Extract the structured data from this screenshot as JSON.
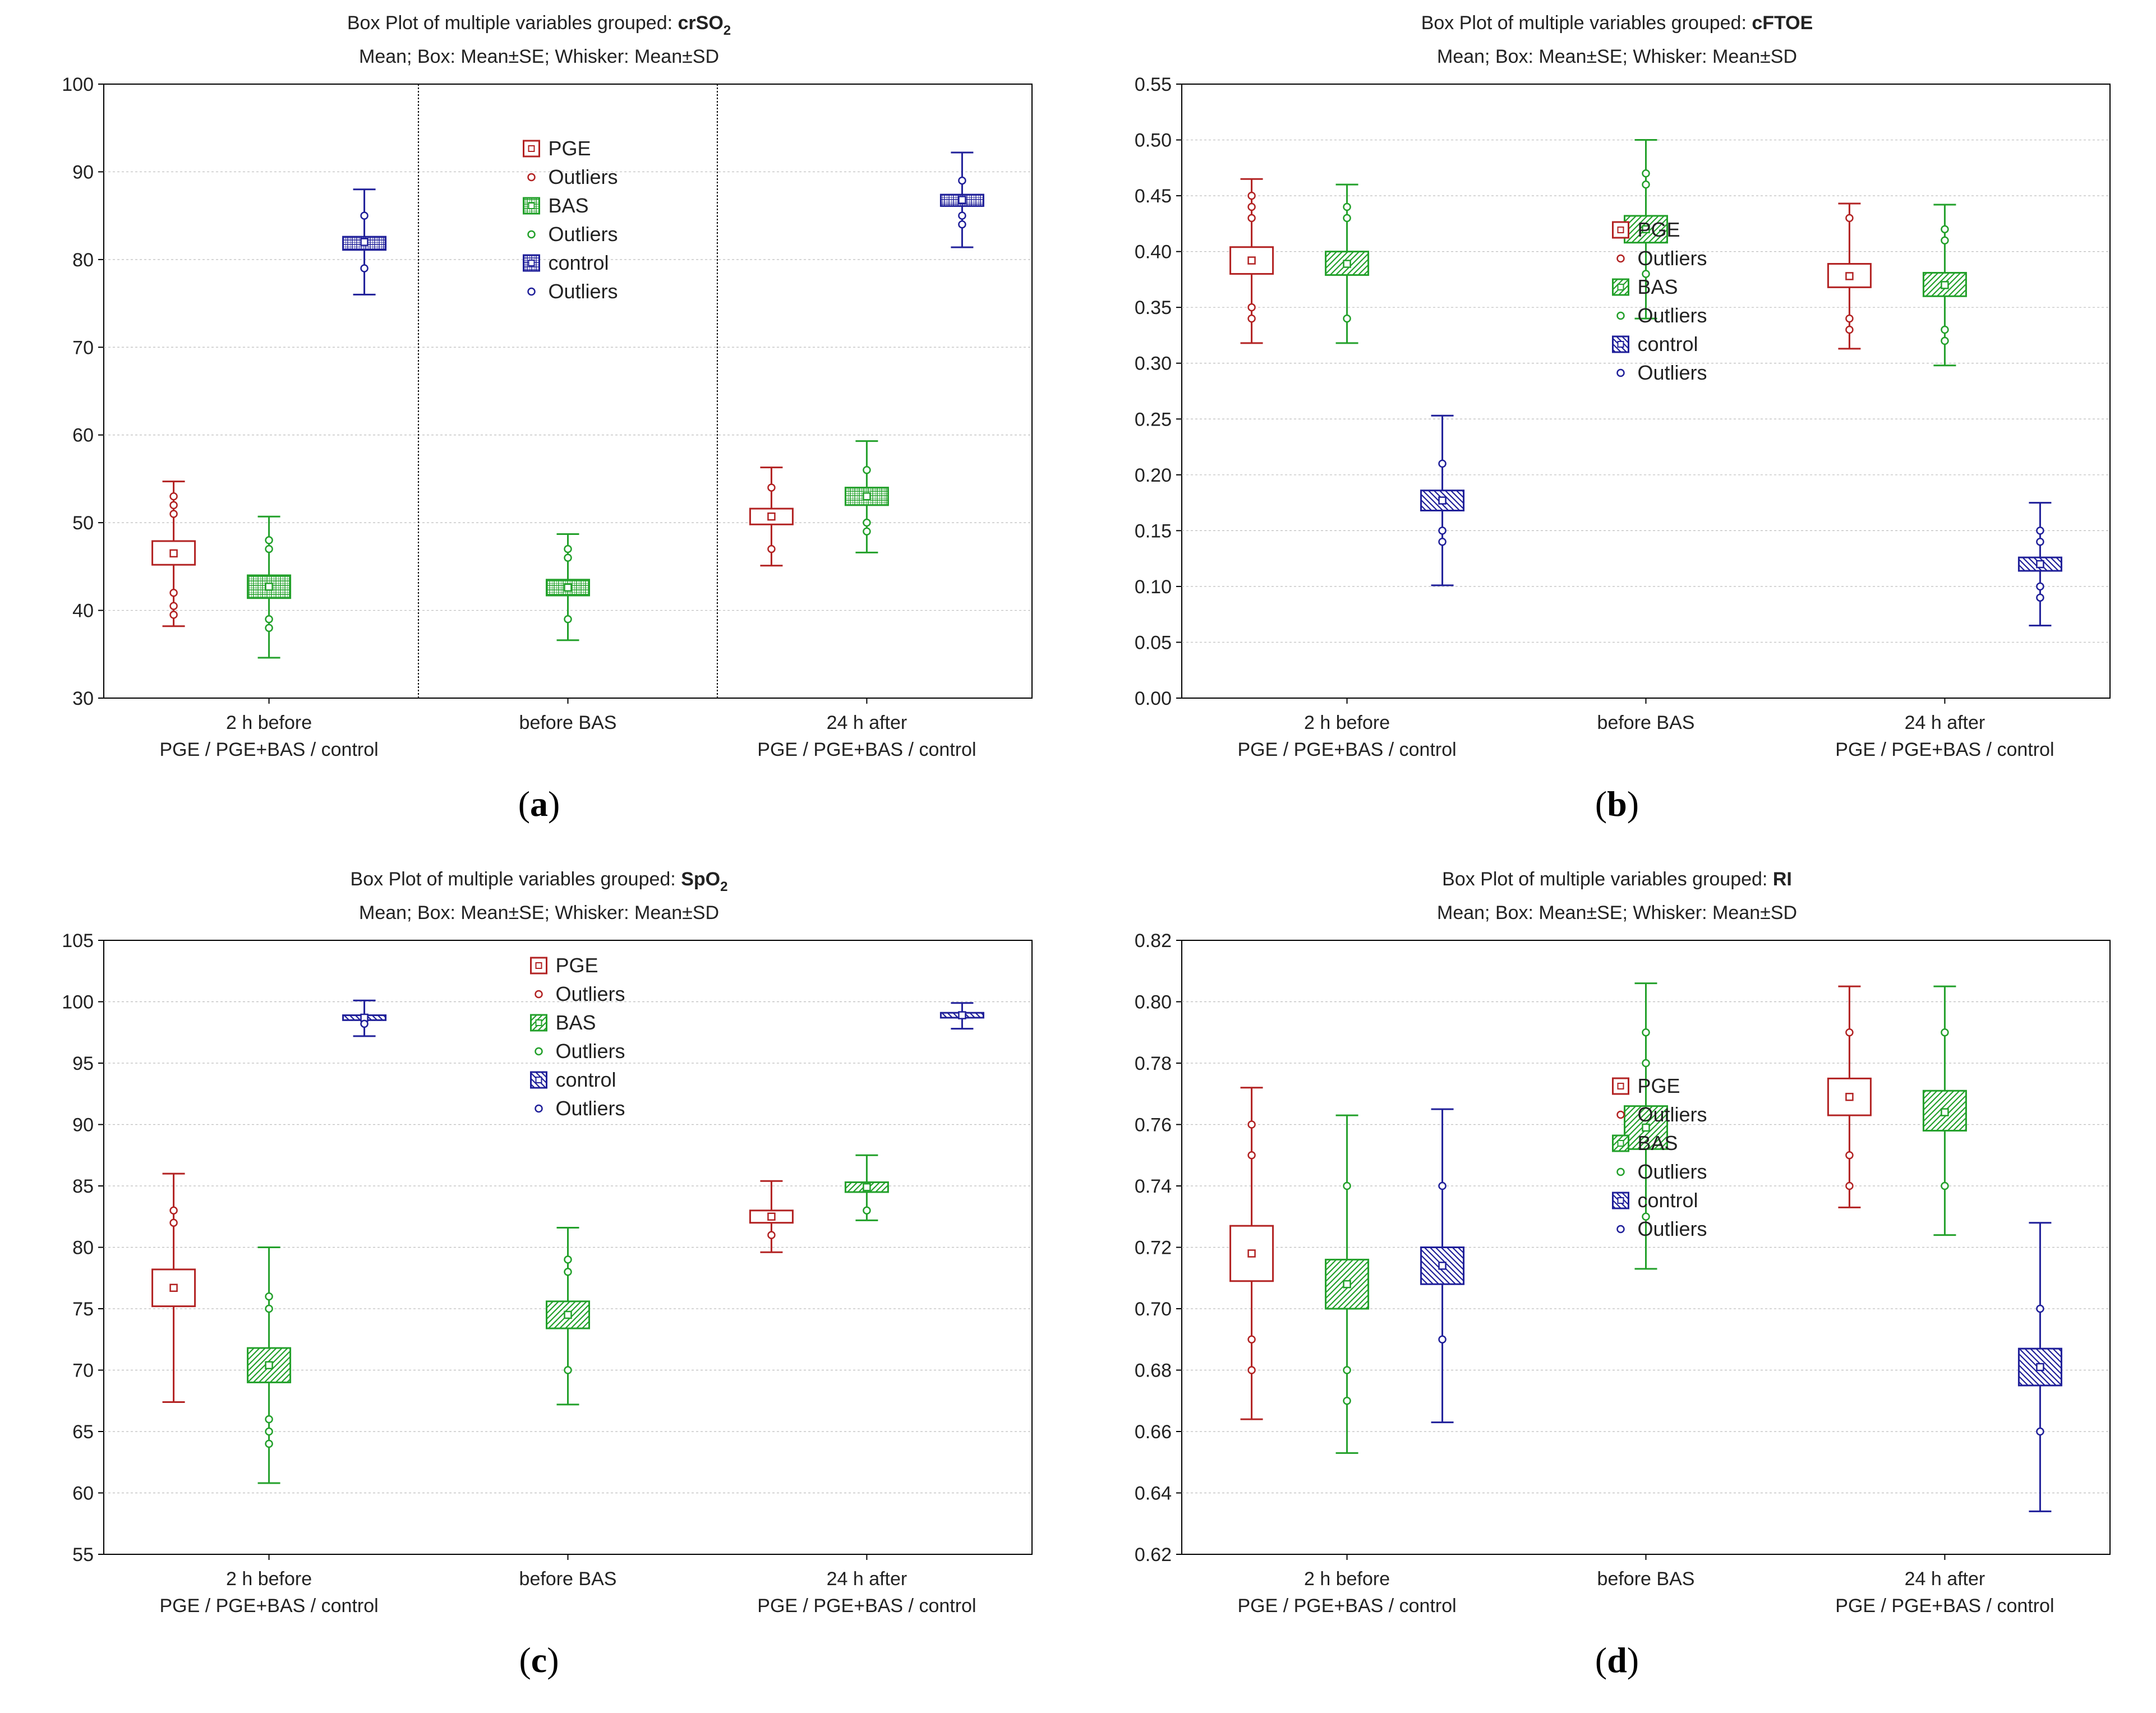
{
  "chart_data": [
    {
      "type": "box",
      "panel_label": "a",
      "title_prefix": "Box Plot of multiple variables grouped: ",
      "title_var": "crSO",
      "title_var_sub": "2",
      "subtitle": "Mean; Box: Mean±SE; Whisker: Mean±SD",
      "ylim": [
        30,
        100
      ],
      "yticks": [
        "30",
        "40",
        "50",
        "60",
        "70",
        "80",
        "90",
        "100"
      ],
      "grid": true,
      "dividers": true,
      "categories": [
        {
          "line1": "2 h before",
          "line2": "PGE / PGE+BAS / control"
        },
        {
          "line1": "before BAS",
          "line2": ""
        },
        {
          "line1": "24 h after",
          "line2": "PGE / PGE+BAS / control"
        }
      ],
      "legend_position": "center",
      "legend": [
        {
          "label": "PGE",
          "kind": "box",
          "series": 0
        },
        {
          "label": "Outliers",
          "kind": "dot",
          "series": 0
        },
        {
          "label": "BAS",
          "kind": "box",
          "series": 1
        },
        {
          "label": "Outliers",
          "kind": "dot",
          "series": 1
        },
        {
          "label": "control",
          "kind": "box",
          "series": 2
        },
        {
          "label": "Outliers",
          "kind": "dot",
          "series": 2
        }
      ],
      "series": [
        {
          "name": "PGE",
          "color": "#b22222",
          "pattern": "none",
          "boxes": [
            {
              "cat": 0,
              "mean": 46.5,
              "se_low": 45.2,
              "se_high": 47.9,
              "sd_low": 38.2,
              "sd_high": 54.7,
              "outliers": [
                53,
                52,
                51,
                42,
                40.5,
                39.5
              ]
            },
            {
              "cat": 2,
              "mean": 50.7,
              "se_low": 49.8,
              "se_high": 51.6,
              "sd_low": 45.1,
              "sd_high": 56.3,
              "outliers": [
                54,
                47
              ]
            }
          ]
        },
        {
          "name": "BAS",
          "color": "#22a02a",
          "pattern": "grid",
          "boxes": [
            {
              "cat": 0,
              "mean": 42.7,
              "se_low": 41.4,
              "se_high": 44.0,
              "sd_low": 34.6,
              "sd_high": 50.7,
              "outliers": [
                48,
                47,
                39,
                38
              ]
            },
            {
              "cat": 1,
              "mean": 42.6,
              "se_low": 41.7,
              "se_high": 43.5,
              "sd_low": 36.6,
              "sd_high": 48.7,
              "outliers": [
                47,
                46,
                39
              ]
            },
            {
              "cat": 2,
              "mean": 53.0,
              "se_low": 52.0,
              "se_high": 54.0,
              "sd_low": 46.6,
              "sd_high": 59.3,
              "outliers": [
                56,
                50,
                49
              ]
            }
          ]
        },
        {
          "name": "control",
          "color": "#1f1f99",
          "pattern": "grid",
          "boxes": [
            {
              "cat": 0,
              "mean": 82.0,
              "se_low": 81.1,
              "se_high": 82.6,
              "sd_low": 76.0,
              "sd_high": 88.0,
              "outliers": [
                85,
                79
              ]
            },
            {
              "cat": 2,
              "mean": 86.8,
              "se_low": 86.1,
              "se_high": 87.4,
              "sd_low": 81.4,
              "sd_high": 92.2,
              "outliers": [
                89,
                85,
                84
              ]
            }
          ]
        }
      ]
    },
    {
      "type": "box",
      "panel_label": "b",
      "title_prefix": "Box Plot of multiple variables grouped: ",
      "title_var": "cFTOE",
      "title_var_sub": "",
      "subtitle": "Mean; Box: Mean±SE; Whisker: Mean±SD",
      "ylim": [
        0.0,
        0.55
      ],
      "yticks": [
        "0.00",
        "0.05",
        "0.10",
        "0.15",
        "0.20",
        "0.25",
        "0.30",
        "0.35",
        "0.40",
        "0.45",
        "0.50",
        "0.55"
      ],
      "grid": true,
      "dividers": false,
      "categories": [
        {
          "line1": "2 h before",
          "line2": "PGE / PGE+BAS / control"
        },
        {
          "line1": "before BAS",
          "line2": ""
        },
        {
          "line1": "24 h after",
          "line2": "PGE / PGE+BAS / control"
        }
      ],
      "legend_position": "center-bottom",
      "legend": [
        {
          "label": "PGE",
          "kind": "box",
          "series": 0
        },
        {
          "label": "Outliers",
          "kind": "dot",
          "series": 0
        },
        {
          "label": "BAS",
          "kind": "box",
          "series": 1
        },
        {
          "label": "Outliers",
          "kind": "dot",
          "series": 1
        },
        {
          "label": "control",
          "kind": "box",
          "series": 2
        },
        {
          "label": "Outliers",
          "kind": "dot",
          "series": 2
        }
      ],
      "series": [
        {
          "name": "PGE",
          "color": "#b22222",
          "pattern": "none",
          "boxes": [
            {
              "cat": 0,
              "mean": 0.392,
              "se_low": 0.38,
              "se_high": 0.404,
              "sd_low": 0.318,
              "sd_high": 0.465,
              "outliers": [
                0.45,
                0.44,
                0.43,
                0.35,
                0.34
              ]
            },
            {
              "cat": 2,
              "mean": 0.378,
              "se_low": 0.368,
              "se_high": 0.389,
              "sd_low": 0.313,
              "sd_high": 0.443,
              "outliers": [
                0.43,
                0.34,
                0.33
              ]
            }
          ]
        },
        {
          "name": "BAS",
          "color": "#22a02a",
          "pattern": "hatch",
          "boxes": [
            {
              "cat": 0,
              "mean": 0.389,
              "se_low": 0.379,
              "se_high": 0.4,
              "sd_low": 0.318,
              "sd_high": 0.46,
              "outliers": [
                0.44,
                0.43,
                0.34
              ]
            },
            {
              "cat": 1,
              "mean": 0.42,
              "se_low": 0.408,
              "se_high": 0.432,
              "sd_low": 0.34,
              "sd_high": 0.5,
              "outliers": [
                0.47,
                0.46,
                0.38
              ]
            },
            {
              "cat": 2,
              "mean": 0.37,
              "se_low": 0.36,
              "se_high": 0.381,
              "sd_low": 0.298,
              "sd_high": 0.442,
              "outliers": [
                0.42,
                0.41,
                0.33,
                0.32
              ]
            }
          ]
        },
        {
          "name": "control",
          "color": "#1f1f99",
          "pattern": "hatch-rev",
          "boxes": [
            {
              "cat": 0,
              "mean": 0.177,
              "se_low": 0.168,
              "se_high": 0.186,
              "sd_low": 0.101,
              "sd_high": 0.253,
              "outliers": [
                0.21,
                0.15,
                0.14
              ]
            },
            {
              "cat": 2,
              "mean": 0.12,
              "se_low": 0.114,
              "se_high": 0.126,
              "sd_low": 0.065,
              "sd_high": 0.175,
              "outliers": [
                0.15,
                0.14,
                0.1,
                0.09
              ]
            }
          ]
        }
      ]
    },
    {
      "type": "box",
      "panel_label": "c",
      "title_prefix": "Box Plot of multiple variables grouped: ",
      "title_var": "SpO",
      "title_var_sub": "2",
      "subtitle": "Mean; Box: Mean±SE; Whisker: Mean±SD",
      "ylim": [
        55,
        105
      ],
      "yticks": [
        "55",
        "60",
        "65",
        "70",
        "75",
        "80",
        "85",
        "90",
        "95",
        "100",
        "105"
      ],
      "grid": true,
      "dividers": false,
      "categories": [
        {
          "line1": "2 h before",
          "line2": "PGE / PGE+BAS / control"
        },
        {
          "line1": "before BAS",
          "line2": ""
        },
        {
          "line1": "24 h after",
          "line2": "PGE / PGE+BAS / control"
        }
      ],
      "legend_position": "top-center",
      "legend": [
        {
          "label": "PGE",
          "kind": "box",
          "series": 0
        },
        {
          "label": "Outliers",
          "kind": "dot",
          "series": 0
        },
        {
          "label": "BAS",
          "kind": "box",
          "series": 1
        },
        {
          "label": "Outliers",
          "kind": "dot",
          "series": 1
        },
        {
          "label": "control",
          "kind": "box",
          "series": 2
        },
        {
          "label": "Outliers",
          "kind": "dot",
          "series": 2
        }
      ],
      "series": [
        {
          "name": "PGE",
          "color": "#b22222",
          "pattern": "none",
          "boxes": [
            {
              "cat": 0,
              "mean": 76.7,
              "se_low": 75.2,
              "se_high": 78.2,
              "sd_low": 67.4,
              "sd_high": 86.0,
              "outliers": [
                83,
                82
              ]
            },
            {
              "cat": 2,
              "mean": 82.5,
              "se_low": 82.0,
              "se_high": 83.0,
              "sd_low": 79.6,
              "sd_high": 85.4,
              "outliers": [
                81
              ]
            }
          ]
        },
        {
          "name": "BAS",
          "color": "#22a02a",
          "pattern": "hatch",
          "boxes": [
            {
              "cat": 0,
              "mean": 70.4,
              "se_low": 69.0,
              "se_high": 71.8,
              "sd_low": 60.8,
              "sd_high": 80.0,
              "outliers": [
                76,
                75,
                66,
                65,
                64
              ]
            },
            {
              "cat": 1,
              "mean": 74.5,
              "se_low": 73.4,
              "se_high": 75.6,
              "sd_low": 67.2,
              "sd_high": 81.6,
              "outliers": [
                79,
                78,
                70
              ]
            },
            {
              "cat": 2,
              "mean": 84.9,
              "se_low": 84.5,
              "se_high": 85.3,
              "sd_low": 82.2,
              "sd_high": 87.5,
              "outliers": [
                83
              ]
            }
          ]
        },
        {
          "name": "control",
          "color": "#1f1f99",
          "pattern": "hatch-rev",
          "boxes": [
            {
              "cat": 0,
              "mean": 98.7,
              "se_low": 98.5,
              "se_high": 98.9,
              "sd_low": 97.2,
              "sd_high": 100.1,
              "outliers": [
                98.2
              ]
            },
            {
              "cat": 2,
              "mean": 98.9,
              "se_low": 98.7,
              "se_high": 99.1,
              "sd_low": 97.8,
              "sd_high": 99.9,
              "outliers": []
            }
          ]
        }
      ]
    },
    {
      "type": "box",
      "panel_label": "d",
      "title_prefix": "Box Plot of multiple variables grouped: ",
      "title_var": "RI",
      "title_var_sub": "",
      "subtitle": "Mean; Box: Mean±SE; Whisker: Mean±SD",
      "ylim": [
        0.62,
        0.82
      ],
      "yticks": [
        "0.62",
        "0.64",
        "0.66",
        "0.68",
        "0.70",
        "0.72",
        "0.74",
        "0.76",
        "0.78",
        "0.80",
        "0.82"
      ],
      "grid": true,
      "dividers": false,
      "categories": [
        {
          "line1": "2 h before",
          "line2": "PGE / PGE+BAS / control"
        },
        {
          "line1": "before BAS",
          "line2": ""
        },
        {
          "line1": "24 h after",
          "line2": "PGE / PGE+BAS / control"
        }
      ],
      "legend_position": "center-bottom",
      "legend": [
        {
          "label": "PGE",
          "kind": "box",
          "series": 0
        },
        {
          "label": "Outliers",
          "kind": "dot",
          "series": 0
        },
        {
          "label": "BAS",
          "kind": "box",
          "series": 1
        },
        {
          "label": "Outliers",
          "kind": "dot",
          "series": 1
        },
        {
          "label": "control",
          "kind": "box",
          "series": 2
        },
        {
          "label": "Outliers",
          "kind": "dot",
          "series": 2
        }
      ],
      "series": [
        {
          "name": "PGE",
          "color": "#b22222",
          "pattern": "none",
          "boxes": [
            {
              "cat": 0,
              "mean": 0.718,
              "se_low": 0.709,
              "se_high": 0.727,
              "sd_low": 0.664,
              "sd_high": 0.772,
              "outliers": [
                0.76,
                0.75,
                0.69,
                0.68
              ]
            },
            {
              "cat": 2,
              "mean": 0.769,
              "se_low": 0.763,
              "se_high": 0.775,
              "sd_low": 0.733,
              "sd_high": 0.805,
              "outliers": [
                0.79,
                0.75,
                0.74
              ]
            }
          ]
        },
        {
          "name": "BAS",
          "color": "#22a02a",
          "pattern": "hatch",
          "boxes": [
            {
              "cat": 0,
              "mean": 0.708,
              "se_low": 0.7,
              "se_high": 0.716,
              "sd_low": 0.653,
              "sd_high": 0.763,
              "outliers": [
                0.74,
                0.68,
                0.67
              ]
            },
            {
              "cat": 1,
              "mean": 0.759,
              "se_low": 0.752,
              "se_high": 0.766,
              "sd_low": 0.713,
              "sd_high": 0.806,
              "outliers": [
                0.79,
                0.78,
                0.73
              ]
            },
            {
              "cat": 2,
              "mean": 0.764,
              "se_low": 0.758,
              "se_high": 0.771,
              "sd_low": 0.724,
              "sd_high": 0.805,
              "outliers": [
                0.79,
                0.74
              ]
            }
          ]
        },
        {
          "name": "control",
          "color": "#1f1f99",
          "pattern": "hatch-rev",
          "boxes": [
            {
              "cat": 0,
              "mean": 0.714,
              "se_low": 0.708,
              "se_high": 0.72,
              "sd_low": 0.663,
              "sd_high": 0.765,
              "outliers": [
                0.74,
                0.69
              ]
            },
            {
              "cat": 2,
              "mean": 0.681,
              "se_low": 0.675,
              "se_high": 0.687,
              "sd_low": 0.634,
              "sd_high": 0.728,
              "outliers": [
                0.7,
                0.66
              ]
            }
          ]
        }
      ]
    }
  ]
}
